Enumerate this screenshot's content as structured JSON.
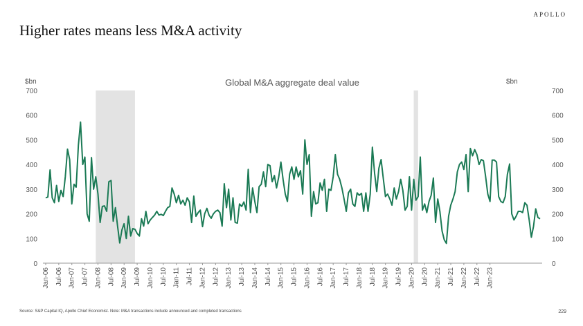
{
  "brand": "APOLLO",
  "title": "Higher rates means less M&A activity",
  "footer": {
    "source": "Source: S&P Capital IQ, Apollo Chief Economist. Note: M&A transactions include announced and completed transactions",
    "page_number": "229"
  },
  "colors": {
    "line": "#1b7a55",
    "recession": "#e3e3e3",
    "axis": "#9a9a9a",
    "text": "#555555"
  },
  "chart_data": {
    "type": "line",
    "title": "Global M&A aggregate deal value",
    "ylabel_left": "$bn",
    "ylabel_right": "$bn",
    "ylim": [
      0,
      700
    ],
    "yticks": [
      0,
      100,
      200,
      300,
      400,
      500,
      600,
      700
    ],
    "grid": false,
    "x_start": "Jan-06",
    "x_tick_labels": [
      "Jan-06",
      "Jul-06",
      "Jan-07",
      "Jul-07",
      "Jan-08",
      "Jul-08",
      "Jan-09",
      "Jul-09",
      "Jan-10",
      "Jul-10",
      "Jan-11",
      "Jul-11",
      "Jan-12",
      "Jul-12",
      "Jan-13",
      "Jul-13",
      "Jan-14",
      "Jul-14",
      "Jan-15",
      "Jul-15",
      "Jan-16",
      "Jul-16",
      "Jan-17",
      "Jul-17",
      "Jan-18",
      "Jul-18",
      "Jan-19",
      "Jul-19",
      "Jan-20",
      "Jul-20",
      "Jan-21",
      "Jul-21",
      "Jan-22",
      "Jul-22",
      "Jan-23"
    ],
    "shaded_periods": [
      {
        "start": "Dec-07",
        "end": "Jun-09"
      },
      {
        "start": "Feb-20",
        "end": "Apr-20"
      }
    ],
    "series": [
      {
        "values": [
          265,
          268,
          378,
          265,
          245,
          315,
          250,
          295,
          270,
          350,
          462,
          420,
          240,
          320,
          308,
          478,
          572,
          400,
          430,
          200,
          170,
          428,
          300,
          350,
          280,
          165,
          230,
          232,
          210,
          330,
          335,
          170,
          225,
          150,
          82,
          135,
          160,
          100,
          190,
          110,
          140,
          137,
          120,
          110,
          180,
          150,
          210,
          160,
          175,
          185,
          195,
          210,
          195,
          198,
          193,
          210,
          225,
          230,
          305,
          280,
          245,
          275,
          240,
          255,
          235,
          265,
          248,
          165,
          272,
          190,
          205,
          215,
          148,
          200,
          222,
          195,
          182,
          200,
          210,
          215,
          205,
          150,
          322,
          225,
          300,
          175,
          265,
          165,
          162,
          240,
          230,
          248,
          215,
          380,
          205,
          305,
          250,
          205,
          310,
          320,
          370,
          310,
          400,
          395,
          330,
          355,
          305,
          350,
          410,
          340,
          280,
          250,
          360,
          390,
          340,
          390,
          350,
          375,
          280,
          500,
          400,
          440,
          190,
          290,
          240,
          245,
          325,
          295,
          340,
          210,
          300,
          295,
          350,
          440,
          360,
          340,
          305,
          260,
          210,
          285,
          300,
          240,
          230,
          285,
          275,
          283,
          210,
          285,
          210,
          280,
          470,
          365,
          290,
          385,
          420,
          345,
          270,
          280,
          260,
          235,
          305,
          260,
          290,
          340,
          295,
          215,
          230,
          350,
          215,
          340,
          255,
          270,
          430,
          215,
          240,
          205,
          250,
          275,
          345,
          165,
          260,
          210,
          130,
          95,
          80,
          190,
          235,
          260,
          290,
          370,
          400,
          410,
          380,
          440,
          290,
          465,
          435,
          460,
          440,
          400,
          420,
          415,
          350,
          280,
          250,
          418,
          418,
          410,
          270,
          250,
          245,
          270,
          360,
          402,
          200,
          175,
          190,
          210,
          210,
          205,
          245,
          235,
          175,
          105,
          150,
          220,
          185,
          180
        ]
      }
    ]
  }
}
